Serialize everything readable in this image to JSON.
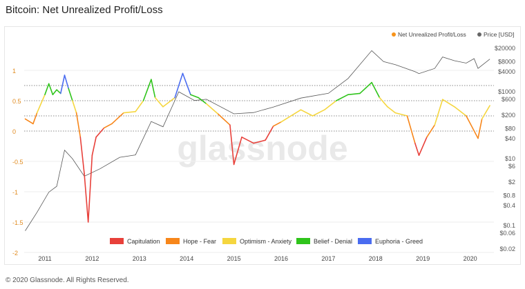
{
  "title": "Bitcoin: Net Unrealized Profit/Loss",
  "footer": "© 2020 Glassnode. All Rights Reserved.",
  "watermark": "glassnode",
  "chart_data": {
    "type": "line",
    "title": "Bitcoin: Net Unrealized Profit/Loss",
    "legend_top": [
      {
        "name": "Net Unrealized Profit/Loss",
        "color": "#f7931a"
      },
      {
        "name": "Price [USD]",
        "color": "#666666"
      }
    ],
    "legend_bottom": [
      {
        "name": "Capitulation",
        "color": "#e8403a",
        "range": [
          -10,
          0
        ]
      },
      {
        "name": "Hope - Fear",
        "color": "#f7861a",
        "range": [
          0,
          0.25
        ]
      },
      {
        "name": "Optimism - Anxiety",
        "color": "#f5d63f",
        "range": [
          0.25,
          0.5
        ]
      },
      {
        "name": "Belief - Denial",
        "color": "#2fc41b",
        "range": [
          0.5,
          0.75
        ]
      },
      {
        "name": "Euphoria - Greed",
        "color": "#4a6cf0",
        "range": [
          0.75,
          10
        ]
      }
    ],
    "x_ticks": [
      "2011",
      "2012",
      "2013",
      "2014",
      "2015",
      "2016",
      "2017",
      "2018",
      "2019",
      "2020"
    ],
    "y_left": {
      "ticks": [
        1,
        0.5,
        0,
        -0.5,
        -1,
        -1.5,
        -2
      ],
      "labels": [
        "1",
        "0.5",
        "0",
        "-0.5",
        "-1",
        "-1.5",
        "-2"
      ],
      "range": [
        -2,
        1.3
      ],
      "dotted_levels": [
        0,
        0.25,
        0.5,
        0.75
      ],
      "color": "#e08a1e"
    },
    "y_right": {
      "scale": "log",
      "labels": [
        "$20000",
        "$8000",
        "$4000",
        "$1000",
        "$600",
        "$200",
        "$80",
        "$40",
        "$10",
        "$6",
        "$2",
        "$0.8",
        "$0.4",
        "$0.1",
        "$0.06",
        "$0.02"
      ],
      "values": [
        20000,
        8000,
        4000,
        1000,
        600,
        200,
        80,
        40,
        10,
        6,
        2,
        0.8,
        0.4,
        0.1,
        0.06,
        0.02
      ]
    },
    "nupl": [
      [
        "2010-08",
        0.2
      ],
      [
        "2010-10",
        0.12
      ],
      [
        "2010-11",
        0.3
      ],
      [
        "2011-01",
        0.6
      ],
      [
        "2011-02",
        0.78
      ],
      [
        "2011-03",
        0.6
      ],
      [
        "2011-04",
        0.68
      ],
      [
        "2011-05",
        0.62
      ],
      [
        "2011-06",
        0.92
      ],
      [
        "2011-07",
        0.7
      ],
      [
        "2011-08",
        0.5
      ],
      [
        "2011-09",
        0.3
      ],
      [
        "2011-10",
        -0.1
      ],
      [
        "2011-11",
        -0.7
      ],
      [
        "2011-12",
        -1.5
      ],
      [
        "2012-01",
        -0.4
      ],
      [
        "2012-02",
        -0.1
      ],
      [
        "2012-04",
        0.05
      ],
      [
        "2012-06",
        0.12
      ],
      [
        "2012-09",
        0.3
      ],
      [
        "2012-12",
        0.32
      ],
      [
        "2013-02",
        0.5
      ],
      [
        "2013-04",
        0.85
      ],
      [
        "2013-05",
        0.55
      ],
      [
        "2013-07",
        0.4
      ],
      [
        "2013-10",
        0.55
      ],
      [
        "2013-12",
        0.95
      ],
      [
        "2014-02",
        0.6
      ],
      [
        "2014-04",
        0.55
      ],
      [
        "2014-06",
        0.45
      ],
      [
        "2014-09",
        0.28
      ],
      [
        "2014-12",
        0.1
      ],
      [
        "2015-01",
        -0.55
      ],
      [
        "2015-03",
        -0.1
      ],
      [
        "2015-06",
        -0.2
      ],
      [
        "2015-09",
        -0.15
      ],
      [
        "2015-11",
        0.08
      ],
      [
        "2016-01",
        0.15
      ],
      [
        "2016-06",
        0.35
      ],
      [
        "2016-09",
        0.25
      ],
      [
        "2016-12",
        0.35
      ],
      [
        "2017-03",
        0.5
      ],
      [
        "2017-06",
        0.6
      ],
      [
        "2017-09",
        0.62
      ],
      [
        "2017-12",
        0.8
      ],
      [
        "2018-02",
        0.55
      ],
      [
        "2018-04",
        0.4
      ],
      [
        "2018-06",
        0.3
      ],
      [
        "2018-09",
        0.25
      ],
      [
        "2018-11",
        -0.2
      ],
      [
        "2018-12",
        -0.4
      ],
      [
        "2019-02",
        -0.1
      ],
      [
        "2019-04",
        0.1
      ],
      [
        "2019-06",
        0.52
      ],
      [
        "2019-09",
        0.4
      ],
      [
        "2019-12",
        0.25
      ],
      [
        "2020-03",
        -0.12
      ],
      [
        "2020-04",
        0.2
      ],
      [
        "2020-06",
        0.42
      ]
    ],
    "price": [
      [
        "2010-08",
        0.07
      ],
      [
        "2010-11",
        0.25
      ],
      [
        "2011-02",
        1
      ],
      [
        "2011-04",
        1.5
      ],
      [
        "2011-06",
        18
      ],
      [
        "2011-08",
        10
      ],
      [
        "2011-11",
        3
      ],
      [
        "2012-03",
        5
      ],
      [
        "2012-08",
        11
      ],
      [
        "2012-12",
        13
      ],
      [
        "2013-04",
        130
      ],
      [
        "2013-07",
        90
      ],
      [
        "2013-11",
        1000
      ],
      [
        "2014-03",
        550
      ],
      [
        "2014-06",
        600
      ],
      [
        "2015-01",
        220
      ],
      [
        "2015-06",
        240
      ],
      [
        "2015-11",
        350
      ],
      [
        "2016-06",
        650
      ],
      [
        "2017-01",
        900
      ],
      [
        "2017-06",
        2500
      ],
      [
        "2017-12",
        17000
      ],
      [
        "2018-03",
        8000
      ],
      [
        "2018-06",
        6500
      ],
      [
        "2018-11",
        4000
      ],
      [
        "2018-12",
        3500
      ],
      [
        "2019-04",
        5000
      ],
      [
        "2019-06",
        11000
      ],
      [
        "2019-09",
        8500
      ],
      [
        "2019-12",
        7200
      ],
      [
        "2020-02",
        9800
      ],
      [
        "2020-03",
        5000
      ],
      [
        "2020-06",
        9500
      ]
    ]
  }
}
